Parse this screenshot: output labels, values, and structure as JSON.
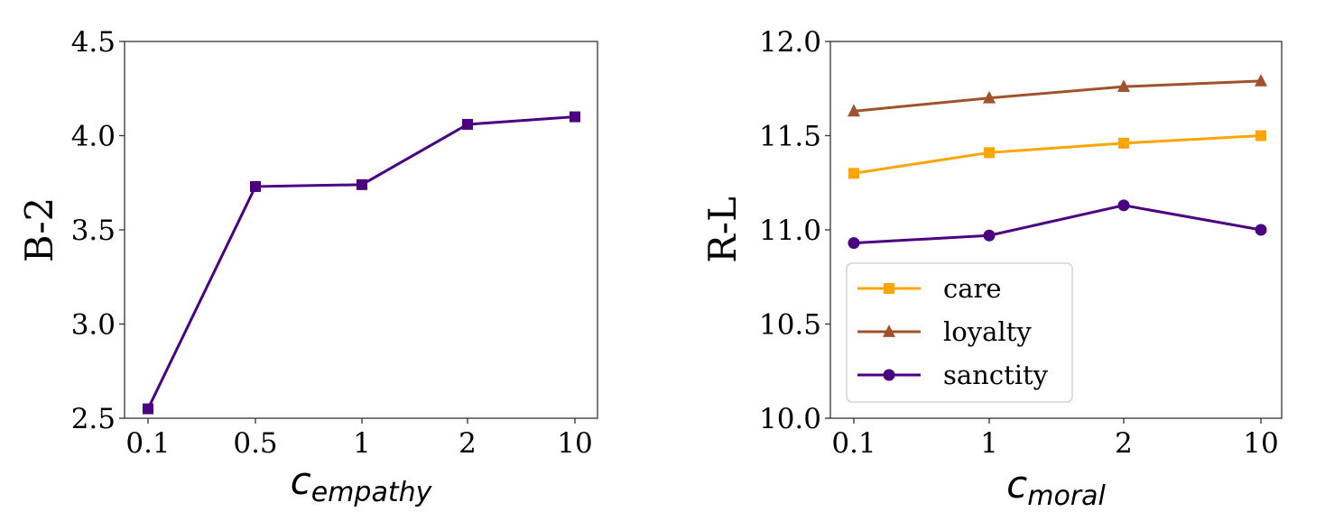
{
  "chart_data": [
    {
      "type": "line",
      "categories": [
        "0.1",
        "0.5",
        "1",
        "2",
        "10"
      ],
      "series": [
        {
          "values": [
            2.55,
            3.73,
            3.74,
            4.06,
            4.1
          ],
          "color": "#4b0082",
          "marker": "square"
        }
      ],
      "xlabel": "c",
      "xlabel_sub": "empathy",
      "ylabel": "B-2",
      "ylim": [
        2.5,
        4.5
      ],
      "yticks": [
        "2.5",
        "3.0",
        "3.5",
        "4.0",
        "4.5"
      ],
      "grid": false
    },
    {
      "type": "line",
      "categories": [
        "0.1",
        "1",
        "2",
        "10"
      ],
      "series": [
        {
          "name": "care",
          "values": [
            11.3,
            11.41,
            11.46,
            11.5
          ],
          "color": "#ffa500",
          "marker": "square"
        },
        {
          "name": "loyalty",
          "values": [
            11.63,
            11.7,
            11.76,
            11.79
          ],
          "color": "#a0522d",
          "marker": "triangle"
        },
        {
          "name": "sanctity",
          "values": [
            10.93,
            10.97,
            11.13,
            11.0
          ],
          "color": "#4b0082",
          "marker": "circle"
        }
      ],
      "xlabel": "c",
      "xlabel_sub": "moral",
      "ylabel": "R-L",
      "ylim": [
        10.0,
        12.0
      ],
      "yticks": [
        "10.0",
        "10.5",
        "11.0",
        "11.5",
        "12.0"
      ],
      "legend": "lower-left",
      "grid": false
    }
  ]
}
